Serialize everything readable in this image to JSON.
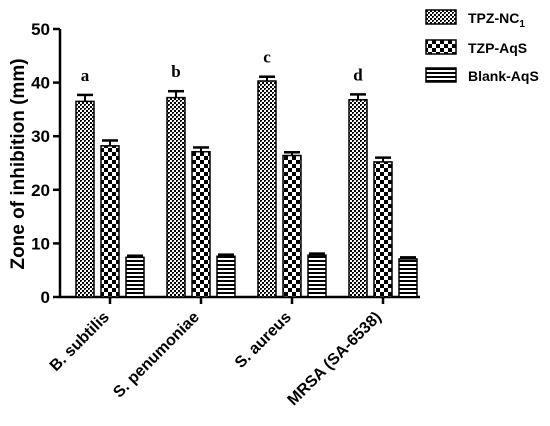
{
  "chart_data": {
    "type": "bar",
    "ylabel": "Zone of inhibition (mm)",
    "ylim": [
      0,
      50
    ],
    "yticks": [
      0,
      10,
      20,
      30,
      40,
      50
    ],
    "grid": false,
    "legend_position": "top-right",
    "categories": [
      "B. subtilis",
      "S. penumoniae",
      "S. aureus",
      "MRSA (SA-6538)"
    ],
    "series": [
      {
        "name": "TPZ-NC",
        "name_subscript": "1",
        "pattern": "crosshatch-dense",
        "values": [
          36.5,
          37.2,
          40.3,
          36.8
        ],
        "errors": [
          1.2,
          1.2,
          0.8,
          1.0
        ]
      },
      {
        "name": "TZP-AqS",
        "pattern": "checker",
        "values": [
          28.2,
          27.1,
          26.4,
          25.2
        ],
        "errors": [
          1.0,
          0.8,
          0.6,
          0.8
        ]
      },
      {
        "name": "Blank-AqS",
        "pattern": "horizontal-stripes",
        "values": [
          7.4,
          7.6,
          7.8,
          7.1
        ],
        "errors": [
          0.3,
          0.3,
          0.3,
          0.3
        ]
      }
    ],
    "annotations": [
      "a",
      "b",
      "c",
      "d"
    ]
  }
}
